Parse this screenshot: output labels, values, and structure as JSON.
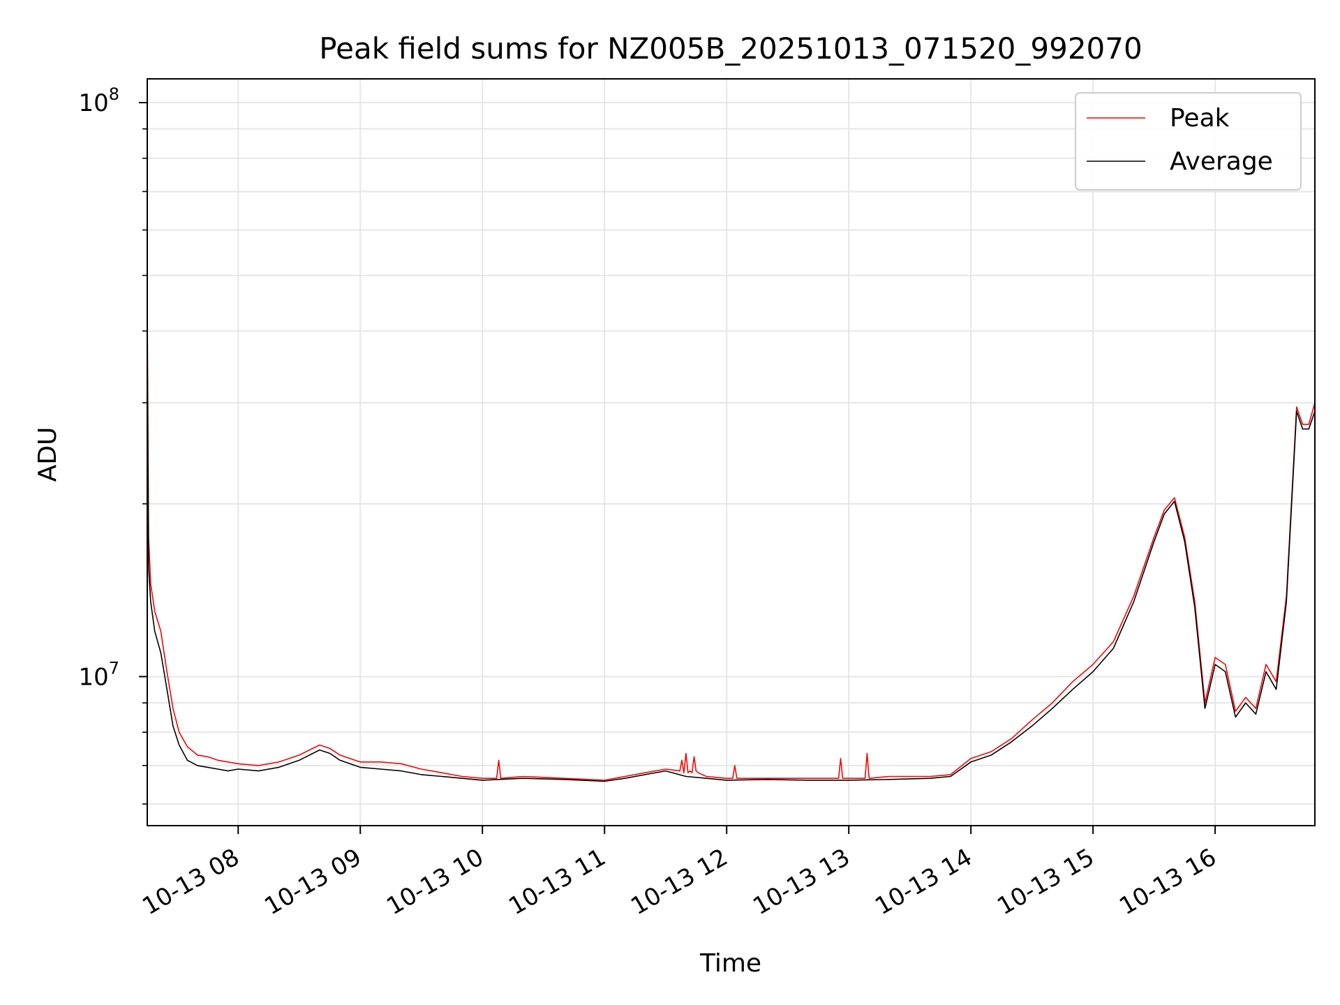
{
  "chart_data": {
    "type": "line",
    "title": "Peak field sums for NZ005B_20251013_071520_992070",
    "xlabel": "Time",
    "ylabel": "ADU",
    "yscale": "log",
    "xlim": [
      "2025-10-13T07:15:20",
      "2025-10-13T16:49:00"
    ],
    "ylim": [
      5500000,
      110000000
    ],
    "grid": true,
    "legend_position": "upper right",
    "x_ticks": [
      {
        "t": "2025-10-13T08:00",
        "label": "10-13 08"
      },
      {
        "t": "2025-10-13T09:00",
        "label": "10-13 09"
      },
      {
        "t": "2025-10-13T10:00",
        "label": "10-13 10"
      },
      {
        "t": "2025-10-13T11:00",
        "label": "10-13 11"
      },
      {
        "t": "2025-10-13T12:00",
        "label": "10-13 12"
      },
      {
        "t": "2025-10-13T13:00",
        "label": "10-13 13"
      },
      {
        "t": "2025-10-13T14:00",
        "label": "10-13 14"
      },
      {
        "t": "2025-10-13T15:00",
        "label": "10-13 15"
      },
      {
        "t": "2025-10-13T16:00",
        "label": "10-13 16"
      }
    ],
    "y_major_ticks": [
      {
        "value": 10000000,
        "base": "10",
        "exp": "7"
      },
      {
        "value": 100000000,
        "base": "10",
        "exp": "8"
      }
    ],
    "y_minor_ticks": [
      6000000,
      7000000,
      8000000,
      9000000,
      20000000,
      30000000,
      40000000,
      50000000,
      60000000,
      70000000,
      80000000,
      90000000
    ],
    "series": [
      {
        "name": "Peak",
        "color": "#ff0000",
        "x": [
          "2025-10-13T07:15:20",
          "2025-10-13T07:16",
          "2025-10-13T07:17",
          "2025-10-13T07:19",
          "2025-10-13T07:22",
          "2025-10-13T07:25",
          "2025-10-13T07:28",
          "2025-10-13T07:31",
          "2025-10-13T07:35",
          "2025-10-13T07:40",
          "2025-10-13T07:45",
          "2025-10-13T07:50",
          "2025-10-13T07:55",
          "2025-10-13T08:00",
          "2025-10-13T08:10",
          "2025-10-13T08:20",
          "2025-10-13T08:30",
          "2025-10-13T08:40",
          "2025-10-13T08:45",
          "2025-10-13T08:50",
          "2025-10-13T09:00",
          "2025-10-13T09:10",
          "2025-10-13T09:20",
          "2025-10-13T09:30",
          "2025-10-13T09:40",
          "2025-10-13T09:50",
          "2025-10-13T10:00",
          "2025-10-13T10:07",
          "2025-10-13T10:08",
          "2025-10-13T10:09",
          "2025-10-13T10:20",
          "2025-10-13T10:40",
          "2025-10-13T11:00",
          "2025-10-13T11:10",
          "2025-10-13T11:20",
          "2025-10-13T11:30",
          "2025-10-13T11:37",
          "2025-10-13T11:38",
          "2025-10-13T11:39",
          "2025-10-13T11:40",
          "2025-10-13T11:41",
          "2025-10-13T11:42",
          "2025-10-13T11:43",
          "2025-10-13T11:44",
          "2025-10-13T11:45",
          "2025-10-13T11:46",
          "2025-10-13T11:50",
          "2025-10-13T12:00",
          "2025-10-13T12:03",
          "2025-10-13T12:04",
          "2025-10-13T12:05",
          "2025-10-13T12:20",
          "2025-10-13T12:40",
          "2025-10-13T12:55",
          "2025-10-13T12:56",
          "2025-10-13T12:57",
          "2025-10-13T13:00",
          "2025-10-13T13:08",
          "2025-10-13T13:09",
          "2025-10-13T13:10",
          "2025-10-13T13:20",
          "2025-10-13T13:40",
          "2025-10-13T13:50",
          "2025-10-13T14:00",
          "2025-10-13T14:10",
          "2025-10-13T14:20",
          "2025-10-13T14:30",
          "2025-10-13T14:40",
          "2025-10-13T14:50",
          "2025-10-13T15:00",
          "2025-10-13T15:10",
          "2025-10-13T15:20",
          "2025-10-13T15:30",
          "2025-10-13T15:35",
          "2025-10-13T15:40",
          "2025-10-13T15:45",
          "2025-10-13T15:50",
          "2025-10-13T15:55",
          "2025-10-13T16:00",
          "2025-10-13T16:05",
          "2025-10-13T16:10",
          "2025-10-13T16:15",
          "2025-10-13T16:20",
          "2025-10-13T16:25",
          "2025-10-13T16:30",
          "2025-10-13T16:35",
          "2025-10-13T16:40",
          "2025-10-13T16:43",
          "2025-10-13T16:46",
          "2025-10-13T16:49"
        ],
        "values": [
          44000000,
          17500000,
          14500000,
          13000000,
          12000000,
          10200000,
          8800000,
          8000000,
          7550000,
          7300000,
          7250000,
          7150000,
          7100000,
          7050000,
          7000000,
          7100000,
          7300000,
          7600000,
          7500000,
          7300000,
          7100000,
          7100000,
          7050000,
          6900000,
          6800000,
          6700000,
          6650000,
          6650000,
          7150000,
          6650000,
          6700000,
          6650000,
          6600000,
          6700000,
          6800000,
          6900000,
          6850000,
          7150000,
          6800000,
          7350000,
          6800000,
          6850000,
          6800000,
          7250000,
          6850000,
          6800000,
          6700000,
          6650000,
          6650000,
          7000000,
          6650000,
          6650000,
          6650000,
          6650000,
          7200000,
          6650000,
          6650000,
          6650000,
          7350000,
          6650000,
          6700000,
          6700000,
          6750000,
          7200000,
          7400000,
          7800000,
          8400000,
          9000000,
          9800000,
          10500000,
          11500000,
          13800000,
          17500000,
          19500000,
          20500000,
          17500000,
          13500000,
          9000000,
          10800000,
          10500000,
          8700000,
          9200000,
          8800000,
          10500000,
          9800000,
          13800000,
          29500000,
          27500000,
          27500000,
          30000000
        ]
      },
      {
        "name": "Average",
        "color": "#000000",
        "x": [
          "2025-10-13T07:15:20",
          "2025-10-13T07:16",
          "2025-10-13T07:17",
          "2025-10-13T07:19",
          "2025-10-13T07:22",
          "2025-10-13T07:25",
          "2025-10-13T07:28",
          "2025-10-13T07:31",
          "2025-10-13T07:35",
          "2025-10-13T07:40",
          "2025-10-13T07:45",
          "2025-10-13T07:50",
          "2025-10-13T07:55",
          "2025-10-13T08:00",
          "2025-10-13T08:10",
          "2025-10-13T08:20",
          "2025-10-13T08:30",
          "2025-10-13T08:40",
          "2025-10-13T08:45",
          "2025-10-13T08:50",
          "2025-10-13T09:00",
          "2025-10-13T09:10",
          "2025-10-13T09:20",
          "2025-10-13T09:30",
          "2025-10-13T09:40",
          "2025-10-13T09:50",
          "2025-10-13T10:00",
          "2025-10-13T10:20",
          "2025-10-13T10:40",
          "2025-10-13T11:00",
          "2025-10-13T11:10",
          "2025-10-13T11:20",
          "2025-10-13T11:30",
          "2025-10-13T11:40",
          "2025-10-13T11:50",
          "2025-10-13T12:00",
          "2025-10-13T12:20",
          "2025-10-13T12:40",
          "2025-10-13T13:00",
          "2025-10-13T13:20",
          "2025-10-13T13:40",
          "2025-10-13T13:50",
          "2025-10-13T14:00",
          "2025-10-13T14:10",
          "2025-10-13T14:20",
          "2025-10-13T14:30",
          "2025-10-13T14:40",
          "2025-10-13T14:50",
          "2025-10-13T15:00",
          "2025-10-13T15:10",
          "2025-10-13T15:20",
          "2025-10-13T15:30",
          "2025-10-13T15:35",
          "2025-10-13T15:40",
          "2025-10-13T15:45",
          "2025-10-13T15:50",
          "2025-10-13T15:55",
          "2025-10-13T16:00",
          "2025-10-13T16:05",
          "2025-10-13T16:10",
          "2025-10-13T16:15",
          "2025-10-13T16:20",
          "2025-10-13T16:25",
          "2025-10-13T16:30",
          "2025-10-13T16:35",
          "2025-10-13T16:40",
          "2025-10-13T16:43",
          "2025-10-13T16:46",
          "2025-10-13T16:49"
        ],
        "values": [
          40000000,
          15500000,
          13500000,
          12000000,
          11000000,
          9500000,
          8200000,
          7600000,
          7150000,
          7000000,
          6950000,
          6900000,
          6850000,
          6900000,
          6850000,
          6950000,
          7150000,
          7450000,
          7350000,
          7150000,
          6950000,
          6900000,
          6850000,
          6750000,
          6700000,
          6650000,
          6600000,
          6650000,
          6620000,
          6570000,
          6650000,
          6750000,
          6850000,
          6700000,
          6650000,
          6600000,
          6620000,
          6600000,
          6600000,
          6620000,
          6650000,
          6700000,
          7100000,
          7300000,
          7700000,
          8200000,
          8800000,
          9500000,
          10200000,
          11200000,
          13500000,
          17200000,
          19200000,
          20200000,
          17200000,
          13200000,
          8800000,
          10500000,
          10200000,
          8500000,
          9000000,
          8600000,
          10200000,
          9500000,
          13500000,
          29000000,
          27000000,
          27000000,
          29000000
        ]
      }
    ]
  }
}
